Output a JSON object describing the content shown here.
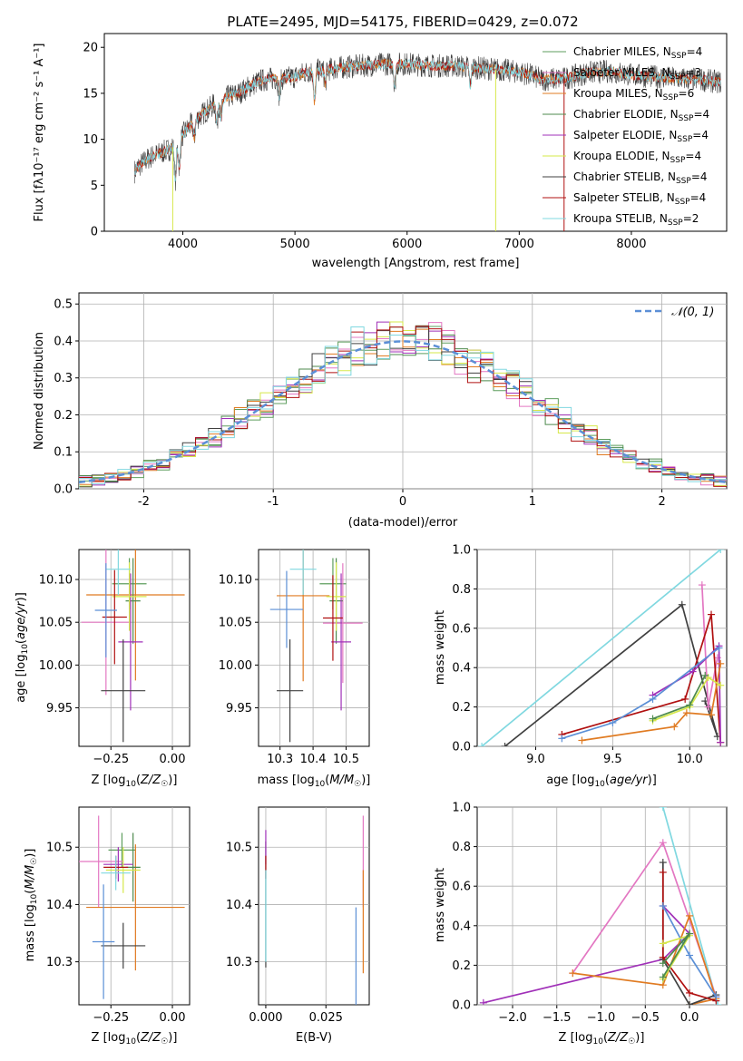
{
  "figure_title": "PLATE=2495, MJD=54175, FIBERID=0429, z=0.072",
  "colors": {
    "Chabrier MILES": "#5e9e5e",
    "Salpeter MILES": "#e377c2",
    "Kroupa MILES": "#e07b22",
    "Chabrier ELODIE": "#4e8a4e",
    "Salpeter ELODIE": "#a030b8",
    "Kroupa ELODIE": "#d6e84a",
    "Chabrier STELIB": "#404040",
    "Salpeter STELIB": "#b01010",
    "Kroupa STELIB": "#80d8e0",
    "normal_curve": "#5b8fd6"
  },
  "chart_data": [
    {
      "id": "spectrum",
      "type": "line",
      "title": "PLATE=2495, MJD=54175, FIBERID=0429, z=0.072",
      "xlabel": "wavelength [Angstrom, rest frame]",
      "ylabel": "Flux [fλ10⁻¹⁷ erg cm⁻² s⁻¹ A⁻¹]",
      "xlim": [
        3300,
        8850
      ],
      "ylim": [
        0,
        21.5
      ],
      "xticks": [
        4000,
        5000,
        6000,
        7000,
        8000
      ],
      "yticks": [
        0,
        5,
        10,
        15,
        20
      ],
      "grid": false,
      "legend_position": "top-right",
      "legend": [
        "Chabrier MILES, N_SSP=4",
        "Salpeter MILES, N_SSP=3",
        "Kroupa MILES, N_SSP=6",
        "Chabrier ELODIE, N_SSP=4",
        "Salpeter ELODIE, N_SSP=4",
        "Kroupa ELODIE, N_SSP=4",
        "Chabrier STELIB, N_SSP=4",
        "Salpeter STELIB, N_SSP=4",
        "Kroupa STELIB, N_SSP=2"
      ],
      "continuum": {
        "x": [
          3570,
          3600,
          3700,
          3800,
          3900,
          4000,
          4100,
          4200,
          4300,
          4400,
          4500,
          4600,
          4700,
          4800,
          4900,
          5000,
          5100,
          5200,
          5300,
          5400,
          5600,
          5800,
          6000,
          6200,
          6400,
          6600,
          6800,
          7000,
          7100,
          7200,
          7400,
          7600,
          7800,
          8000,
          8200,
          8400,
          8600,
          8800
        ],
        "y": [
          6.5,
          7.0,
          8.0,
          8.5,
          9.0,
          10.5,
          12.0,
          13.0,
          14.0,
          14.6,
          15.0,
          15.8,
          16.4,
          16.6,
          16.6,
          16.8,
          17.3,
          17.5,
          17.6,
          17.8,
          18.0,
          18.2,
          18.2,
          18.0,
          18.0,
          17.8,
          17.6,
          17.3,
          17.0,
          16.5,
          16.6,
          17.2,
          17.4,
          17.0,
          16.8,
          16.6,
          16.5,
          16.2
        ]
      },
      "spikes": [
        {
          "x": 3910,
          "y": 0,
          "series": "Kroupa ELODIE"
        },
        {
          "x": 6790,
          "y": 0,
          "series": "Kroupa ELODIE"
        },
        {
          "x": 7400,
          "y": 0,
          "series": "Salpeter STELIB"
        }
      ]
    },
    {
      "id": "residuals",
      "type": "line",
      "xlabel": "(data-model)/error",
      "ylabel": "Normed distribution",
      "xlim": [
        -2.5,
        2.5
      ],
      "ylim": [
        0,
        0.53
      ],
      "xticks": [
        -2,
        -1,
        0,
        1,
        2
      ],
      "yticks": [
        0.0,
        0.1,
        0.2,
        0.3,
        0.4,
        0.5
      ],
      "grid": true,
      "legend_position": "top-right",
      "legend": [
        "N(0,1)"
      ],
      "hist_bin_width": 0.1
    },
    {
      "id": "age_vs_Z",
      "type": "scatter",
      "xlabel": "Z [log10(Z/Z☉)]",
      "ylabel": "age [log10(age/yr)]",
      "xlim": [
        -0.38,
        0.07
      ],
      "ylim": [
        9.905,
        10.135
      ],
      "xticks": [
        -0.25,
        0.0
      ],
      "yticks": [
        9.95,
        10.0,
        10.05,
        10.1
      ],
      "grid": true,
      "points": [
        {
          "series": "Chabrier MILES",
          "x": -0.175,
          "y": 10.095,
          "xerr": 0.07,
          "yerr": 0.03
        },
        {
          "series": "Salpeter MILES",
          "x": -0.27,
          "y": 10.05,
          "xerr": 0.1,
          "yerr": 0.085
        },
        {
          "series": "Kroupa MILES",
          "x": -0.15,
          "y": 10.082,
          "xerr": 0.2,
          "yerr": 0.1
        },
        {
          "series": "Chabrier ELODIE",
          "x": -0.16,
          "y": 10.075,
          "xerr": 0.03,
          "yerr": 0.05
        },
        {
          "series": "Salpeter ELODIE",
          "x": -0.17,
          "y": 10.027,
          "xerr": 0.05,
          "yerr": 0.08
        },
        {
          "series": "Kroupa ELODIE",
          "x": -0.175,
          "y": 10.08,
          "xerr": 0.07,
          "yerr": 0.04
        },
        {
          "series": "Chabrier STELIB",
          "x": -0.2,
          "y": 9.97,
          "xerr": 0.09,
          "yerr": 0.06
        },
        {
          "series": "Salpeter STELIB",
          "x": -0.235,
          "y": 10.056,
          "xerr": 0.05,
          "yerr": 0.055
        },
        {
          "series": "Kroupa STELIB",
          "x": -0.22,
          "y": 10.112,
          "xerr": 0.05,
          "yerr": 0.03
        },
        {
          "series": "normal_curve",
          "x": -0.27,
          "y": 10.064,
          "xerr": 0.045,
          "yerr": 0.055
        }
      ]
    },
    {
      "id": "age_vs_mass",
      "type": "scatter",
      "xlabel": "mass [log10(M/M☉)]",
      "ylabel": "",
      "xlim": [
        10.235,
        10.57
      ],
      "ylim": [
        9.905,
        10.135
      ],
      "xticks": [
        10.3,
        10.4,
        10.5
      ],
      "yticks": [
        9.95,
        10.0,
        10.05,
        10.1
      ],
      "grid": true,
      "points": [
        {
          "series": "Chabrier MILES",
          "x": 10.46,
          "y": 10.095,
          "xerr": 0.04,
          "yerr": 0.03
        },
        {
          "series": "Salpeter MILES",
          "x": 10.49,
          "y": 10.049,
          "xerr": 0.06,
          "yerr": 0.07
        },
        {
          "series": "Kroupa MILES",
          "x": 10.37,
          "y": 10.081,
          "xerr": 0.08,
          "yerr": 0.1
        },
        {
          "series": "Chabrier ELODIE",
          "x": 10.47,
          "y": 10.075,
          "xerr": 0.02,
          "yerr": 0.05
        },
        {
          "series": "Salpeter ELODIE",
          "x": 10.485,
          "y": 10.027,
          "xerr": 0.03,
          "yerr": 0.08
        },
        {
          "series": "Kroupa ELODIE",
          "x": 10.47,
          "y": 10.08,
          "xerr": 0.03,
          "yerr": 0.04
        },
        {
          "series": "Chabrier STELIB",
          "x": 10.33,
          "y": 9.97,
          "xerr": 0.04,
          "yerr": 0.06
        },
        {
          "series": "Salpeter STELIB",
          "x": 10.46,
          "y": 10.055,
          "xerr": 0.03,
          "yerr": 0.05
        },
        {
          "series": "Kroupa STELIB",
          "x": 10.37,
          "y": 10.112,
          "xerr": 0.04,
          "yerr": 0.03
        },
        {
          "series": "normal_curve",
          "x": 10.32,
          "y": 10.065,
          "xerr": 0.05,
          "yerr": 0.045
        }
      ]
    },
    {
      "id": "weights_vs_age",
      "type": "line",
      "xlabel": "age [log10(age/yr)]",
      "ylabel": "mass weight",
      "xlim": [
        8.62,
        10.24
      ],
      "ylim": [
        0.0,
        1.0
      ],
      "xticks": [
        9.0,
        9.5,
        10.0
      ],
      "yticks": [
        0.0,
        0.2,
        0.4,
        0.6,
        0.8,
        1.0
      ],
      "grid": true,
      "series": [
        {
          "series": "Kroupa STELIB",
          "x": [
            8.65,
            10.2
          ],
          "y": [
            0.0,
            1.0
          ]
        },
        {
          "series": "Chabrier STELIB",
          "x": [
            8.8,
            9.95,
            10.18,
            10.1
          ],
          "y": [
            0.0,
            0.72,
            0.05,
            0.23
          ]
        },
        {
          "series": "Salpeter MILES",
          "x": [
            10.08,
            10.12,
            10.18
          ],
          "y": [
            0.82,
            0.2,
            0.45
          ]
        },
        {
          "series": "Salpeter STELIB",
          "x": [
            9.17,
            9.97,
            10.14,
            10.2
          ],
          "y": [
            0.06,
            0.24,
            0.67,
            0.02
          ]
        },
        {
          "series": "Salpeter ELODIE",
          "x": [
            9.76,
            10.02,
            10.19,
            10.2
          ],
          "y": [
            0.26,
            0.38,
            0.51,
            0.02
          ]
        },
        {
          "series": "normal_curve",
          "x": [
            9.17,
            9.5,
            9.76,
            10.19
          ],
          "y": [
            0.04,
            0.12,
            0.24,
            0.5
          ]
        },
        {
          "series": "Kroupa MILES",
          "x": [
            9.3,
            9.9,
            9.98,
            10.14,
            10.2
          ],
          "y": [
            0.03,
            0.1,
            0.17,
            0.16,
            0.42
          ]
        },
        {
          "series": "Kroupa ELODIE",
          "x": [
            9.76,
            10.0,
            10.12,
            10.2
          ],
          "y": [
            0.13,
            0.2,
            0.35,
            0.31
          ]
        },
        {
          "series": "Chabrier ELODIE",
          "x": [
            9.76,
            10.0,
            10.1
          ],
          "y": [
            0.14,
            0.21,
            0.36
          ]
        }
      ]
    },
    {
      "id": "mass_vs_Z",
      "type": "scatter",
      "xlabel": "Z [log10(Z/Z☉)]",
      "ylabel": "mass [log10(M/M☉)]",
      "xlim": [
        -0.38,
        0.07
      ],
      "ylim": [
        10.225,
        10.57
      ],
      "xticks": [
        -0.25,
        0.0
      ],
      "yticks": [
        10.3,
        10.4,
        10.5
      ],
      "grid": true,
      "points": [
        {
          "series": "Chabrier MILES",
          "x": -0.205,
          "y": 10.495,
          "xerr": 0.055,
          "yerr": 0.03
        },
        {
          "series": "Salpeter MILES",
          "x": -0.3,
          "y": 10.475,
          "xerr": 0.1,
          "yerr": 0.08
        },
        {
          "series": "Kroupa MILES",
          "x": -0.15,
          "y": 10.395,
          "xerr": 0.2,
          "yerr": 0.11
        },
        {
          "series": "Chabrier ELODIE",
          "x": -0.16,
          "y": 10.465,
          "xerr": 0.03,
          "yerr": 0.06
        },
        {
          "series": "Salpeter ELODIE",
          "x": -0.22,
          "y": 10.47,
          "xerr": 0.06,
          "yerr": 0.03
        },
        {
          "series": "Kroupa ELODIE",
          "x": -0.2,
          "y": 10.46,
          "xerr": 0.07,
          "yerr": 0.04
        },
        {
          "series": "Chabrier STELIB",
          "x": -0.2,
          "y": 10.328,
          "xerr": 0.09,
          "yerr": 0.04
        },
        {
          "series": "Salpeter STELIB",
          "x": -0.23,
          "y": 10.465,
          "xerr": 0.05,
          "yerr": 0.02
        },
        {
          "series": "Kroupa STELIB",
          "x": -0.23,
          "y": 10.455,
          "xerr": 0.06,
          "yerr": 0.03
        },
        {
          "series": "normal_curve",
          "x": -0.28,
          "y": 10.335,
          "xerr": 0.045,
          "yerr": 0.1
        }
      ]
    },
    {
      "id": "mass_vs_ebv",
      "type": "scatter",
      "xlabel": "E(B-V)",
      "ylabel": "",
      "xlim": [
        -0.003,
        0.043
      ],
      "ylim": [
        10.225,
        10.57
      ],
      "xticks": [
        0.0,
        0.025
      ],
      "yticks": [
        10.3,
        10.4,
        10.5
      ],
      "grid": true,
      "points": [
        {
          "series": "Chabrier STELIB",
          "x": 0.0,
          "y": 10.4,
          "xerr": 0.0,
          "yerr": 0.11
        },
        {
          "series": "Salpeter ELODIE",
          "x": 0.0,
          "y": 10.5,
          "xerr": 0.0,
          "yerr": 0.03
        },
        {
          "series": "Salpeter STELIB",
          "x": 0.0,
          "y": 10.465,
          "xerr": 0.0,
          "yerr": 0.02
        },
        {
          "series": "Kroupa STELIB",
          "x": 0.0,
          "y": 10.38,
          "xerr": 0.0,
          "yerr": 0.08
        },
        {
          "series": "normal_curve",
          "x": 0.0375,
          "y": 10.31,
          "xerr": 0.0,
          "yerr": 0.085
        },
        {
          "series": "Salpeter MILES",
          "x": 0.0405,
          "y": 10.475,
          "xerr": 0.0,
          "yerr": 0.08
        },
        {
          "series": "Kroupa MILES",
          "x": 0.0405,
          "y": 10.37,
          "xerr": 0.0,
          "yerr": 0.09
        }
      ]
    },
    {
      "id": "weights_vs_Z",
      "type": "line",
      "xlabel": "Z [log10(Z/Z☉)]",
      "ylabel": "mass weight",
      "xlim": [
        -2.4,
        0.42
      ],
      "ylim": [
        0.0,
        1.0
      ],
      "xticks": [
        -2.0,
        -1.5,
        -1.0,
        -0.5,
        0.0
      ],
      "yticks": [
        0.0,
        0.2,
        0.4,
        0.6,
        0.8,
        1.0
      ],
      "grid": true,
      "series": [
        {
          "series": "Kroupa STELIB",
          "x": [
            -0.3,
            0.32
          ],
          "y": [
            1.0,
            0.0
          ]
        },
        {
          "series": "Salpeter MILES",
          "x": [
            -1.32,
            -0.3,
            0.3
          ],
          "y": [
            0.16,
            0.82,
            0.04
          ]
        },
        {
          "series": "Salpeter ELODIE",
          "x": [
            -2.33,
            -0.3,
            0.0,
            -0.3
          ],
          "y": [
            0.01,
            0.23,
            0.36,
            0.5
          ]
        },
        {
          "series": "Kroupa MILES",
          "x": [
            -1.32,
            -0.3,
            0.0,
            0.3,
            0.0
          ],
          "y": [
            0.16,
            0.1,
            0.45,
            0.03,
            0.0
          ]
        },
        {
          "series": "Chabrier STELIB",
          "x": [
            -0.3,
            -0.3,
            0.0,
            0.3
          ],
          "y": [
            0.72,
            0.23,
            0.0,
            0.05
          ]
        },
        {
          "series": "Salpeter STELIB",
          "x": [
            -0.3,
            -0.3,
            0.0,
            0.3
          ],
          "y": [
            0.67,
            0.24,
            0.06,
            0.02
          ]
        },
        {
          "series": "normal_curve",
          "x": [
            -0.3,
            0.0,
            0.3
          ],
          "y": [
            0.5,
            0.25,
            0.04
          ]
        },
        {
          "series": "Kroupa ELODIE",
          "x": [
            -0.3,
            0.0,
            -0.3
          ],
          "y": [
            0.31,
            0.35,
            0.13
          ]
        },
        {
          "series": "Chabrier ELODIE",
          "x": [
            -0.3,
            0.0,
            -0.3
          ],
          "y": [
            0.14,
            0.36,
            0.21
          ]
        }
      ]
    }
  ]
}
